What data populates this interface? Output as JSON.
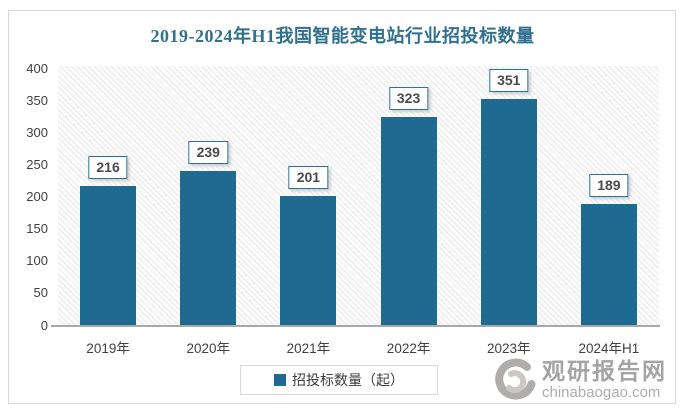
{
  "title": "2019-2024年H1我国智能变电站行业招投标数量",
  "chart_data": {
    "type": "bar",
    "title": "2019-2024年H1我国智能变电站行业招投标数量",
    "categories": [
      "2019年",
      "2020年",
      "2021年",
      "2022年",
      "2023年",
      "2024年H1"
    ],
    "series": [
      {
        "name": "招投标数量（起）",
        "values": [
          216,
          239,
          201,
          323,
          351,
          189
        ]
      }
    ],
    "xlabel": "",
    "ylabel": "",
    "ylim": [
      0,
      400
    ],
    "yticks": [
      0,
      50,
      100,
      150,
      200,
      250,
      300,
      350,
      400
    ],
    "grid": false,
    "data_labels": true,
    "legend_position": "bottom",
    "plot_background": "diagonal-hatch",
    "bar_color": "#1E6A91"
  },
  "legend": {
    "items": [
      {
        "label": "招投标数量（起）",
        "color": "#1E6A91"
      }
    ]
  },
  "watermark": {
    "brand": "观研报告网",
    "domain": "chinabaogao.com"
  },
  "colors": {
    "title": "#31708F",
    "bar": "#1E6A91",
    "axis_text": "#404040",
    "axis_line": "#A8A8A8",
    "frame_border": "#D9D9D9",
    "label_box_border": "#2A7498",
    "label_text": "#4A4A4A",
    "watermark_text": "#9D9D9D"
  }
}
